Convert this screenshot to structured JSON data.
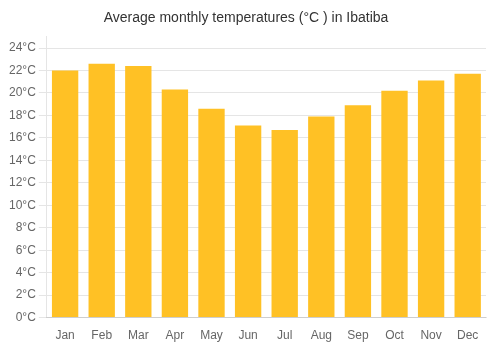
{
  "chart_data": {
    "type": "bar",
    "title": "Average monthly temperatures (°C ) in Ibatiba",
    "categories": [
      "Jan",
      "Feb",
      "Mar",
      "Apr",
      "May",
      "Jun",
      "Jul",
      "Aug",
      "Sep",
      "Oct",
      "Nov",
      "Dec"
    ],
    "values": [
      22.0,
      22.6,
      22.4,
      20.3,
      18.6,
      17.1,
      16.7,
      17.9,
      18.9,
      20.2,
      21.1,
      21.7
    ],
    "color": "#FFC125",
    "ylim": [
      0,
      25
    ],
    "yticks": [
      {
        "value": 0,
        "label": "0°C"
      },
      {
        "value": 2,
        "label": "2°C"
      },
      {
        "value": 4,
        "label": "4°C"
      },
      {
        "value": 6,
        "label": "6°C"
      },
      {
        "value": 8,
        "label": "8°C"
      },
      {
        "value": 10,
        "label": "10°C"
      },
      {
        "value": 12,
        "label": "12°C"
      },
      {
        "value": 14,
        "label": "14°C"
      },
      {
        "value": 16,
        "label": "16°C"
      },
      {
        "value": 18,
        "label": "18°C"
      },
      {
        "value": 20,
        "label": "20°C"
      },
      {
        "value": 22,
        "label": "22°C"
      },
      {
        "value": 24,
        "label": "24°C"
      }
    ],
    "grid": true
  }
}
